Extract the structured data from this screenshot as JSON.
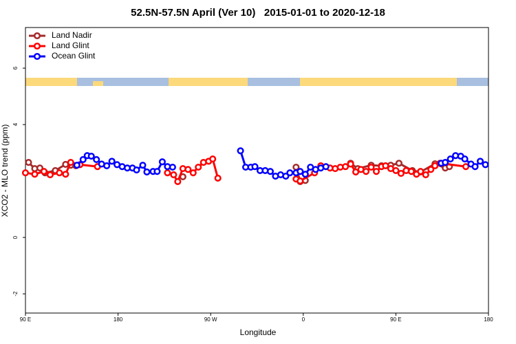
{
  "chart_data": {
    "type": "line",
    "title": "52.5N-57.5N April (Ver 10)   2015-01-01 to 2020-12-18",
    "xlabel": "Longitude",
    "ylabel": "XCO2 - MLO trend (ppm)",
    "xlim": [
      90,
      540
    ],
    "ylim": [
      -2.68,
      7.44
    ],
    "xticks": [
      {
        "value": 90,
        "label": "90 E"
      },
      {
        "value": 180,
        "label": "180"
      },
      {
        "value": 270,
        "label": "90 W"
      },
      {
        "value": 360,
        "label": "0"
      },
      {
        "value": 450,
        "label": "90 E"
      },
      {
        "value": 540,
        "label": "180"
      }
    ],
    "yticks": [
      -2,
      0,
      4,
      6
    ],
    "legend": "top-left",
    "series": [
      {
        "name": "Land Nadir",
        "color": "#a52a2a",
        "x": [
          93,
          99,
          104,
          109,
          119,
          129,
          134,
          139,
          190,
          243,
          300,
          353,
          357,
          362,
          385,
          406,
          413,
          426,
          436,
          445,
          453,
          466,
          474,
          488,
          498,
          502
        ],
        "values": [
          2.66,
          2.44,
          2.46,
          2.29,
          2.37,
          2.59,
          2.56,
          2.54,
          null,
          2.15,
          null,
          2.49,
          1.98,
          2.02,
          null,
          2.63,
          2.44,
          2.56,
          2.54,
          2.56,
          2.63,
          2.37,
          2.32,
          2.61,
          2.46,
          2.51
        ]
      },
      {
        "name": "Land Glint",
        "color": "#ff0000",
        "x": [
          90,
          99,
          108,
          114,
          123,
          129,
          134,
          143,
          160,
          195,
          228,
          234,
          238,
          243,
          248,
          253,
          258,
          263,
          268,
          272,
          277,
          315,
          353,
          357,
          371,
          377,
          386,
          391,
          396,
          401,
          406,
          411,
          416,
          421,
          426,
          431,
          436,
          440,
          445,
          450,
          455,
          460,
          465,
          470,
          474,
          479,
          484,
          488,
          493,
          518
        ],
        "values": [
          2.29,
          2.24,
          2.34,
          2.22,
          2.29,
          2.24,
          2.66,
          2.58,
          2.51,
          null,
          2.29,
          2.22,
          1.98,
          2.44,
          2.41,
          2.29,
          2.49,
          2.66,
          2.7,
          2.78,
          2.1,
          null,
          2.07,
          2.0,
          2.29,
          2.54,
          2.46,
          2.44,
          2.49,
          2.51,
          2.6,
          2.32,
          2.41,
          2.34,
          2.49,
          2.34,
          2.51,
          2.54,
          2.44,
          2.37,
          2.27,
          2.37,
          2.34,
          2.24,
          2.34,
          2.22,
          2.41,
          2.54,
          2.63,
          2.51
        ]
      },
      {
        "name": "Ocean Glint",
        "color": "#0000ff",
        "x": [
          140,
          146,
          150,
          154,
          159,
          164,
          169,
          174,
          179,
          184,
          189,
          194,
          198,
          204,
          208,
          214,
          218,
          223,
          228,
          233,
          266,
          299,
          304,
          309,
          313,
          318,
          323,
          328,
          333,
          338,
          343,
          347,
          353,
          357,
          362,
          367,
          372,
          377,
          382,
          438,
          494,
          498,
          503,
          508,
          513,
          517,
          523,
          527,
          532,
          537
        ],
        "values": [
          2.56,
          2.76,
          2.9,
          2.88,
          2.76,
          2.6,
          2.54,
          2.7,
          2.58,
          2.51,
          2.46,
          2.46,
          2.39,
          2.56,
          2.32,
          2.34,
          2.34,
          2.68,
          2.51,
          2.49,
          null,
          3.07,
          2.49,
          2.49,
          2.51,
          2.37,
          2.37,
          2.34,
          2.17,
          2.22,
          2.17,
          2.29,
          2.29,
          2.34,
          2.24,
          2.49,
          2.41,
          2.46,
          2.51,
          null,
          2.63,
          2.66,
          2.78,
          2.9,
          2.88,
          2.78,
          2.6,
          2.51,
          2.7,
          2.58
        ]
      }
    ]
  }
}
